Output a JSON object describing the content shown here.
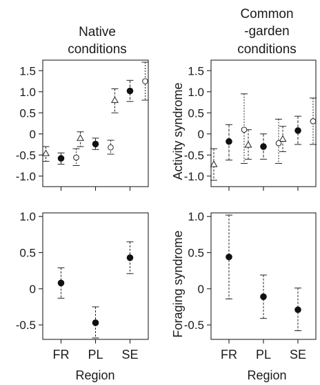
{
  "figure": {
    "col_titles": [
      [
        "Native",
        "conditions"
      ],
      [
        "Common",
        "-garden",
        "conditions"
      ]
    ],
    "row_ylabels": [
      "Activity syndrome",
      "Foraging syndrome"
    ],
    "xlabel": "Region",
    "categories": [
      "FR",
      "PL",
      "SE"
    ]
  },
  "chart_data": [
    {
      "type": "scatter",
      "panel": "native-activity",
      "title": "Native conditions",
      "ylabel": "",
      "xlabel": "",
      "categories": [
        "FR",
        "PL",
        "SE"
      ],
      "ylim": [
        -1.25,
        1.75
      ],
      "yticks": [
        -1.0,
        -0.5,
        0,
        0.5,
        1.0,
        1.5
      ],
      "ytick_labels": [
        "-1.0",
        "-0.5",
        "0",
        "0.5",
        "1.0",
        "1.5"
      ],
      "series": [
        {
          "marker": "open-triangle",
          "values": [
            -0.46,
            -0.1,
            0.8
          ],
          "lower": [
            -0.65,
            -0.3,
            0.5
          ],
          "upper": [
            -0.3,
            0.05,
            1.07
          ]
        },
        {
          "marker": "filled-circle",
          "values": [
            -0.58,
            -0.24,
            1.02
          ],
          "lower": [
            -0.72,
            -0.37,
            0.77
          ],
          "upper": [
            -0.45,
            -0.1,
            1.27
          ]
        },
        {
          "marker": "open-circle",
          "values": [
            -0.56,
            -0.32,
            1.25
          ],
          "lower": [
            -0.75,
            -0.48,
            0.8
          ],
          "upper": [
            -0.35,
            -0.15,
            1.7
          ]
        }
      ],
      "grid": false
    },
    {
      "type": "scatter",
      "panel": "common-garden-activity",
      "title": "Common-garden conditions",
      "ylabel": "Activity syndrome",
      "xlabel": "",
      "categories": [
        "FR",
        "PL",
        "SE"
      ],
      "ylim": [
        -1.25,
        1.75
      ],
      "yticks": [
        -1.0,
        -0.5,
        0,
        0.5,
        1.0,
        1.5
      ],
      "ytick_labels": [
        "-1.0",
        "-0.5",
        "0",
        "0.5",
        "1.0",
        "1.5"
      ],
      "series": [
        {
          "marker": "open-triangle",
          "values": [
            -0.72,
            -0.26,
            -0.12
          ],
          "lower": [
            -1.1,
            -0.6,
            -0.42
          ],
          "upper": [
            -0.35,
            0.1,
            0.18
          ]
        },
        {
          "marker": "filled-circle",
          "values": [
            -0.18,
            -0.3,
            0.08
          ],
          "lower": [
            -0.62,
            -0.6,
            -0.25
          ],
          "upper": [
            0.22,
            0.0,
            0.42
          ]
        },
        {
          "marker": "open-circle",
          "values": [
            0.1,
            -0.22,
            0.3
          ],
          "lower": [
            -0.7,
            -0.7,
            -0.25
          ],
          "upper": [
            0.95,
            0.35,
            0.85
          ]
        }
      ],
      "grid": false
    },
    {
      "type": "scatter",
      "panel": "native-foraging",
      "title": "",
      "ylabel": "",
      "xlabel": "Region",
      "categories": [
        "FR",
        "PL",
        "SE"
      ],
      "ylim": [
        -0.7,
        1.05
      ],
      "yticks": [
        -0.5,
        0,
        0.5,
        1.0
      ],
      "ytick_labels": [
        "-0.5",
        "0",
        "0.5",
        "1.0"
      ],
      "series": [
        {
          "marker": "filled-circle",
          "values": [
            0.08,
            -0.47,
            0.43
          ],
          "lower": [
            -0.13,
            -0.68,
            0.21
          ],
          "upper": [
            0.29,
            -0.25,
            0.65
          ]
        }
      ],
      "grid": false
    },
    {
      "type": "scatter",
      "panel": "common-garden-foraging",
      "title": "",
      "ylabel": "Foraging syndrome",
      "xlabel": "Region",
      "categories": [
        "FR",
        "PL",
        "SE"
      ],
      "ylim": [
        -0.7,
        1.05
      ],
      "yticks": [
        -0.5,
        0,
        0.5,
        1.0
      ],
      "ytick_labels": [
        "-0.5",
        "0",
        "0.5",
        "1.0"
      ],
      "series": [
        {
          "marker": "filled-circle",
          "values": [
            0.44,
            -0.11,
            -0.29
          ],
          "lower": [
            -0.14,
            -0.41,
            -0.58
          ],
          "upper": [
            1.02,
            0.19,
            0.01
          ]
        }
      ],
      "grid": false
    }
  ]
}
